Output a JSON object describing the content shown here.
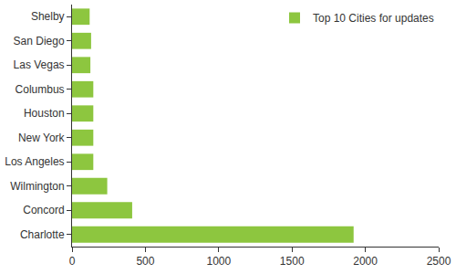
{
  "chart_data": {
    "type": "bar",
    "orientation": "horizontal",
    "categories": [
      "Charlotte",
      "Concord",
      "Wilmington",
      "Los Angeles",
      "New York",
      "Houston",
      "Columbus",
      "Las Vegas",
      "San Diego",
      "Shelby"
    ],
    "series": [
      {
        "name": "Top 10 Cities for updates",
        "color": "#8dc63f",
        "values": [
          1920,
          410,
          240,
          145,
          145,
          145,
          145,
          125,
          130,
          120
        ]
      }
    ],
    "xlim": [
      0,
      2500
    ],
    "xticks": [
      0,
      500,
      1000,
      1500,
      2000,
      2500
    ],
    "grid": false,
    "legend": "top-right"
  }
}
